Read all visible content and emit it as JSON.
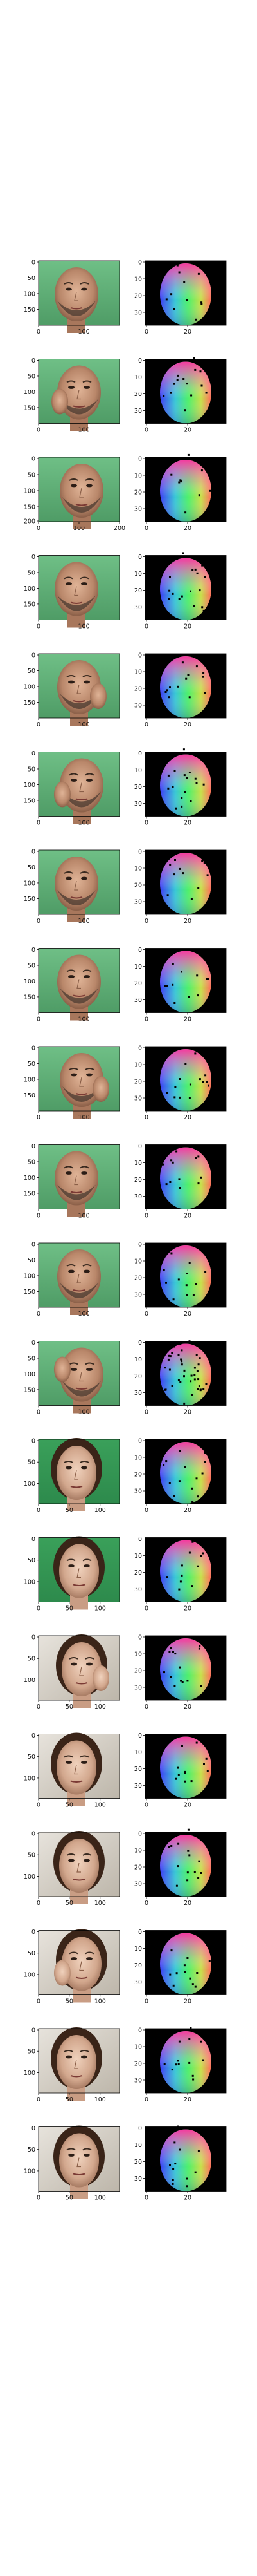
{
  "figure": {
    "rows": [
      {
        "face": {
          "kind": "man",
          "yticks": [
            "0",
            "50",
            "100",
            "150"
          ],
          "xticks": [
            "0",
            "100"
          ],
          "ybottom": "",
          "xtick_frac": [
            0,
            0.56
          ]
        },
        "map": {
          "yticks": [
            "0",
            "10",
            "20",
            "30"
          ],
          "xticks": [
            "0",
            "20"
          ],
          "noise": 0.1
        }
      },
      {
        "face": {
          "kind": "man",
          "yticks": [
            "0",
            "50",
            "100",
            "150"
          ],
          "xticks": [
            "0",
            "100"
          ],
          "ybottom": "",
          "xtick_frac": [
            0,
            0.56
          ]
        },
        "map": {
          "yticks": [
            "0",
            "10",
            "20",
            "30"
          ],
          "xticks": [
            "0",
            "20"
          ],
          "noise": 0.12
        }
      },
      {
        "face": {
          "kind": "man",
          "yticks": [
            "0",
            "50",
            "100",
            "150"
          ],
          "xticks": [
            "0",
            "100",
            "200"
          ],
          "ybottom": "200",
          "xtick_frac": [
            0,
            0.5,
            1.0
          ]
        },
        "map": {
          "yticks": [
            "0",
            "10",
            "20",
            "30"
          ],
          "xticks": [
            "0",
            "20"
          ],
          "noise": 0.08
        }
      },
      {
        "face": {
          "kind": "man",
          "yticks": [
            "0",
            "50",
            "100",
            "150"
          ],
          "xticks": [
            "0",
            "100"
          ],
          "ybottom": "",
          "xtick_frac": [
            0,
            0.56
          ]
        },
        "map": {
          "yticks": [
            "0",
            "10",
            "20",
            "30"
          ],
          "xticks": [
            "0",
            "20"
          ],
          "noise": 0.15
        }
      },
      {
        "face": {
          "kind": "man",
          "yticks": [
            "0",
            "50",
            "100",
            "150"
          ],
          "xticks": [
            "0",
            "100"
          ],
          "ybottom": "",
          "xtick_frac": [
            0,
            0.56
          ]
        },
        "map": {
          "yticks": [
            "0",
            "10",
            "20",
            "30"
          ],
          "xticks": [
            "0",
            "20"
          ],
          "noise": 0.12
        }
      },
      {
        "face": {
          "kind": "man",
          "yticks": [
            "0",
            "50",
            "100",
            "150"
          ],
          "xticks": [
            "0",
            "100"
          ],
          "ybottom": "",
          "xtick_frac": [
            0,
            0.56
          ]
        },
        "map": {
          "yticks": [
            "0",
            "10",
            "20",
            "30"
          ],
          "xticks": [
            "0",
            "20"
          ],
          "noise": 0.14
        }
      },
      {
        "face": {
          "kind": "man",
          "yticks": [
            "0",
            "50",
            "100",
            "150"
          ],
          "xticks": [
            "0",
            "100"
          ],
          "ybottom": "",
          "xtick_frac": [
            0,
            0.56
          ]
        },
        "map": {
          "yticks": [
            "0",
            "10",
            "20",
            "30"
          ],
          "xticks": [
            "0",
            "20"
          ],
          "noise": 0.1
        }
      },
      {
        "face": {
          "kind": "man",
          "yticks": [
            "0",
            "50",
            "100",
            "150"
          ],
          "xticks": [
            "0",
            "100"
          ],
          "ybottom": "",
          "xtick_frac": [
            0,
            0.56
          ]
        },
        "map": {
          "yticks": [
            "0",
            "10",
            "20",
            "30"
          ],
          "xticks": [
            "0",
            "20"
          ],
          "noise": 0.09
        }
      },
      {
        "face": {
          "kind": "man",
          "yticks": [
            "0",
            "50",
            "100",
            "150"
          ],
          "xticks": [
            "0",
            "100"
          ],
          "ybottom": "",
          "xtick_frac": [
            0,
            0.56
          ]
        },
        "map": {
          "yticks": [
            "0",
            "10",
            "20",
            "30"
          ],
          "xticks": [
            "0",
            "20"
          ],
          "noise": 0.12
        }
      },
      {
        "face": {
          "kind": "man",
          "yticks": [
            "0",
            "50",
            "100",
            "150"
          ],
          "xticks": [
            "0",
            "100"
          ],
          "ybottom": "",
          "xtick_frac": [
            0,
            0.56
          ]
        },
        "map": {
          "yticks": [
            "0",
            "10",
            "20",
            "30"
          ],
          "xticks": [
            "0",
            "20"
          ],
          "noise": 0.1
        }
      },
      {
        "face": {
          "kind": "man",
          "yticks": [
            "0",
            "50",
            "100",
            "150"
          ],
          "xticks": [
            "0",
            "100"
          ],
          "ybottom": "",
          "xtick_frac": [
            0,
            0.56
          ]
        },
        "map": {
          "yticks": [
            "0",
            "10",
            "20",
            "30"
          ],
          "xticks": [
            "0",
            "20"
          ],
          "noise": 0.11
        }
      },
      {
        "face": {
          "kind": "man",
          "yticks": [
            "0",
            "50",
            "100",
            "150"
          ],
          "xticks": [
            "0",
            "100"
          ],
          "ybottom": "",
          "xtick_frac": [
            0,
            0.56
          ]
        },
        "map": {
          "yticks": [
            "0",
            "10",
            "20",
            "30"
          ],
          "xticks": [
            "0",
            "20"
          ],
          "noise": 0.35
        }
      },
      {
        "face": {
          "kind": "woman",
          "yticks": [
            "0",
            "50",
            "100"
          ],
          "xticks": [
            "0",
            "50",
            "100"
          ],
          "ybottom": "",
          "xtick_frac": [
            0,
            0.38,
            0.76
          ]
        },
        "map": {
          "yticks": [
            "0",
            "10",
            "20",
            "30"
          ],
          "xticks": [
            "0",
            "20"
          ],
          "noise": 0.12
        }
      },
      {
        "face": {
          "kind": "woman",
          "yticks": [
            "0",
            "50",
            "100"
          ],
          "xticks": [
            "0",
            "50",
            "100"
          ],
          "ybottom": "",
          "xtick_frac": [
            0,
            0.38,
            0.76
          ]
        },
        "map": {
          "yticks": [
            "0",
            "10",
            "20",
            "30"
          ],
          "xticks": [
            "0",
            "20"
          ],
          "noise": 0.1
        }
      },
      {
        "face": {
          "kind": "woman2",
          "yticks": [
            "0",
            "50",
            "100"
          ],
          "xticks": [
            "0",
            "50",
            "100"
          ],
          "ybottom": "",
          "xtick_frac": [
            0,
            0.38,
            0.76
          ]
        },
        "map": {
          "yticks": [
            "0",
            "10",
            "20",
            "30"
          ],
          "xticks": [
            "0",
            "20"
          ],
          "noise": 0.12
        }
      },
      {
        "face": {
          "kind": "woman2",
          "yticks": [
            "0",
            "50",
            "100"
          ],
          "xticks": [
            "0",
            "50",
            "100"
          ],
          "ybottom": "",
          "xtick_frac": [
            0,
            0.38,
            0.76
          ]
        },
        "map": {
          "yticks": [
            "0",
            "10",
            "20",
            "30"
          ],
          "xticks": [
            "0",
            "20"
          ],
          "noise": 0.1
        }
      },
      {
        "face": {
          "kind": "woman2",
          "yticks": [
            "0",
            "50",
            "100"
          ],
          "xticks": [
            "0",
            "50",
            "100"
          ],
          "ybottom": "",
          "xtick_frac": [
            0,
            0.38,
            0.76
          ]
        },
        "map": {
          "yticks": [
            "0",
            "10",
            "20",
            "30"
          ],
          "xticks": [
            "0",
            "20"
          ],
          "noise": 0.12
        }
      },
      {
        "face": {
          "kind": "woman2",
          "yticks": [
            "0",
            "50",
            "100"
          ],
          "xticks": [
            "0",
            "50",
            "100"
          ],
          "ybottom": "",
          "xtick_frac": [
            0,
            0.38,
            0.76
          ]
        },
        "map": {
          "yticks": [
            "0",
            "10",
            "20",
            "30"
          ],
          "xticks": [
            "0",
            "20"
          ],
          "noise": 0.11
        }
      },
      {
        "face": {
          "kind": "woman2",
          "yticks": [
            "0",
            "50",
            "100"
          ],
          "xticks": [
            "0",
            "50",
            "100"
          ],
          "ybottom": "",
          "xtick_frac": [
            0,
            0.38,
            0.76
          ]
        },
        "map": {
          "yticks": [
            "0",
            "10",
            "20",
            "30"
          ],
          "xticks": [
            "0",
            "20"
          ],
          "noise": 0.12
        }
      },
      {
        "face": {
          "kind": "woman2",
          "yticks": [
            "0",
            "50",
            "100"
          ],
          "xticks": [
            "0",
            "50",
            "100"
          ],
          "ybottom": "",
          "xtick_frac": [
            0,
            0.38,
            0.76
          ]
        },
        "map": {
          "yticks": [
            "0",
            "10",
            "20",
            "30"
          ],
          "xticks": [
            "0",
            "20"
          ],
          "noise": 0.1
        }
      }
    ]
  },
  "colors": {
    "background_green": "#7fbf7f",
    "skin_man": "#c99a7c",
    "skin_woman": "#d8b39c",
    "hair_dark": "#2a1f1a",
    "map_background": "#000000"
  }
}
